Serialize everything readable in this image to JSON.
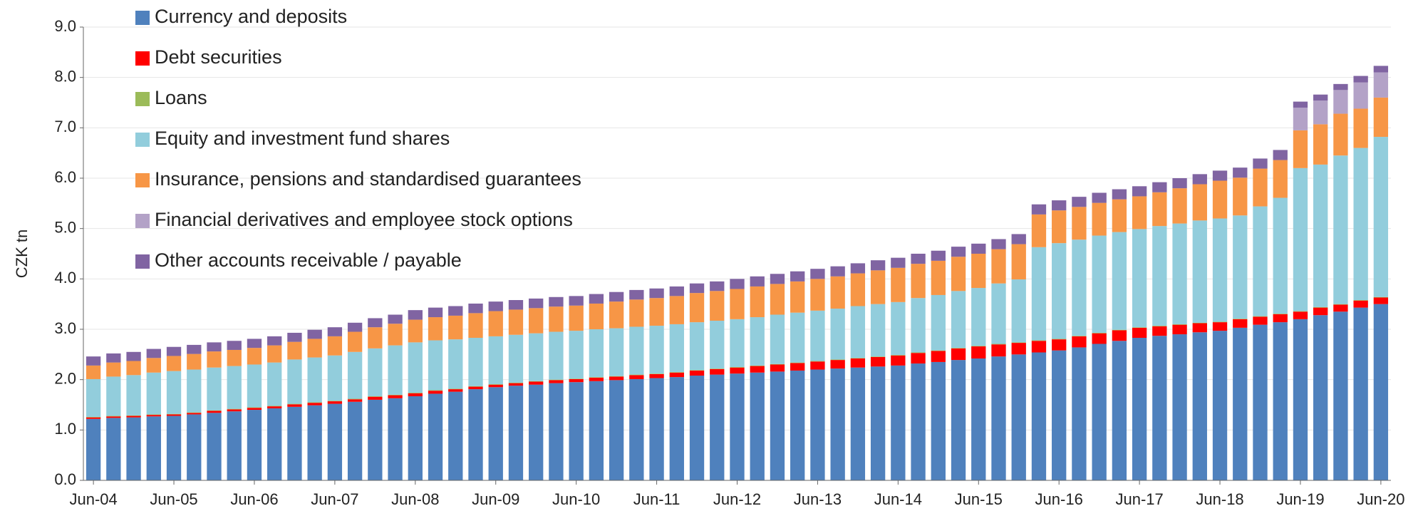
{
  "chart_data": {
    "type": "stacked_bar",
    "y_label": "CZK tn",
    "categories": [
      "Jun-04",
      null,
      null,
      null,
      "Jun-05",
      null,
      null,
      null,
      "Jun-06",
      null,
      null,
      null,
      "Jun-07",
      null,
      null,
      null,
      "Jun-08",
      null,
      null,
      null,
      "Jun-09",
      null,
      null,
      null,
      "Jun-10",
      null,
      null,
      null,
      "Jun-11",
      null,
      null,
      null,
      "Jun-12",
      null,
      null,
      null,
      "Jun-13",
      null,
      null,
      null,
      "Jun-14",
      null,
      null,
      null,
      "Jun-15",
      null,
      null,
      null,
      "Jun-16",
      null,
      null,
      null,
      "Jun-17",
      null,
      null,
      null,
      "Jun-18",
      null,
      null,
      null,
      "Jun-19",
      null,
      null,
      null,
      "Jun-20"
    ],
    "series": [
      {
        "name": "Currency and deposits",
        "color": "#4f81bd",
        "values": [
          1.22,
          1.24,
          1.25,
          1.27,
          1.28,
          1.31,
          1.34,
          1.37,
          1.4,
          1.43,
          1.46,
          1.49,
          1.52,
          1.56,
          1.6,
          1.63,
          1.67,
          1.72,
          1.76,
          1.81,
          1.85,
          1.88,
          1.9,
          1.93,
          1.95,
          1.97,
          1.99,
          2.01,
          2.03,
          2.05,
          2.08,
          2.1,
          2.12,
          2.14,
          2.16,
          2.18,
          2.2,
          2.22,
          2.24,
          2.26,
          2.28,
          2.32,
          2.35,
          2.39,
          2.42,
          2.46,
          2.5,
          2.54,
          2.58,
          2.64,
          2.71,
          2.77,
          2.83,
          2.87,
          2.9,
          2.94,
          2.97,
          3.03,
          3.09,
          3.14,
          3.2,
          3.28,
          3.35,
          3.43,
          3.5
        ]
      },
      {
        "name": "Debt securities",
        "color": "#ff0000",
        "values": [
          0.03,
          0.03,
          0.03,
          0.03,
          0.03,
          0.03,
          0.04,
          0.04,
          0.04,
          0.04,
          0.05,
          0.05,
          0.05,
          0.05,
          0.06,
          0.06,
          0.06,
          0.06,
          0.05,
          0.05,
          0.05,
          0.05,
          0.06,
          0.06,
          0.06,
          0.07,
          0.07,
          0.08,
          0.08,
          0.09,
          0.1,
          0.11,
          0.12,
          0.13,
          0.14,
          0.15,
          0.16,
          0.17,
          0.18,
          0.19,
          0.2,
          0.21,
          0.22,
          0.23,
          0.24,
          0.24,
          0.23,
          0.23,
          0.22,
          0.22,
          0.21,
          0.21,
          0.2,
          0.19,
          0.19,
          0.18,
          0.17,
          0.17,
          0.16,
          0.16,
          0.15,
          0.15,
          0.14,
          0.14,
          0.13
        ]
      },
      {
        "name": "Loans",
        "color": "#9bbb59",
        "values": [
          0.01,
          0.01,
          0.01,
          0.01,
          0.01,
          0.01,
          0.01,
          0.01,
          0.01,
          0.01,
          0.01,
          0.01,
          0.01,
          0.01,
          0.01,
          0.01,
          0.01,
          0.01,
          0.01,
          0.01,
          0.01,
          0.01,
          0.01,
          0.01,
          0.01,
          0.01,
          0.01,
          0.01,
          0.01,
          0.01,
          0.01,
          0.01,
          0.01,
          0.01,
          0.01,
          0.01,
          0.01,
          0.01,
          0.01,
          0.01,
          0.01,
          0.01,
          0.01,
          0.01,
          0.01,
          0.01,
          0.01,
          0.01,
          0.01,
          0.01,
          0.01,
          0.01,
          0.01,
          0.01,
          0.01,
          0.01,
          0.01,
          0.01,
          0.01,
          0.01,
          0.01,
          0.01,
          0.01,
          0.01,
          0.01
        ]
      },
      {
        "name": "Equity and investment fund shares",
        "color": "#92cddc",
        "values": [
          0.75,
          0.78,
          0.8,
          0.83,
          0.85,
          0.85,
          0.85,
          0.85,
          0.85,
          0.86,
          0.88,
          0.89,
          0.9,
          0.93,
          0.95,
          0.98,
          1.0,
          0.99,
          0.98,
          0.96,
          0.95,
          0.95,
          0.95,
          0.95,
          0.95,
          0.95,
          0.95,
          0.95,
          0.95,
          0.95,
          0.95,
          0.95,
          0.95,
          0.96,
          0.98,
          0.99,
          1.0,
          1.01,
          1.03,
          1.04,
          1.05,
          1.08,
          1.1,
          1.13,
          1.15,
          1.2,
          1.25,
          1.85,
          1.9,
          1.91,
          1.93,
          1.94,
          1.95,
          1.98,
          2.0,
          2.03,
          2.05,
          2.05,
          2.18,
          2.3,
          2.84,
          2.83,
          2.95,
          3.02,
          3.18
        ]
      },
      {
        "name": "Insurance, pensions and standardised guarantees",
        "color": "#f79646",
        "values": [
          0.27,
          0.28,
          0.28,
          0.29,
          0.3,
          0.31,
          0.32,
          0.32,
          0.33,
          0.34,
          0.35,
          0.37,
          0.38,
          0.4,
          0.42,
          0.43,
          0.45,
          0.46,
          0.47,
          0.49,
          0.5,
          0.5,
          0.5,
          0.5,
          0.5,
          0.51,
          0.53,
          0.54,
          0.55,
          0.56,
          0.58,
          0.59,
          0.6,
          0.61,
          0.61,
          0.62,
          0.63,
          0.64,
          0.65,
          0.67,
          0.68,
          0.68,
          0.68,
          0.68,
          0.68,
          0.68,
          0.7,
          0.65,
          0.65,
          0.65,
          0.65,
          0.65,
          0.65,
          0.67,
          0.7,
          0.72,
          0.75,
          0.75,
          0.75,
          0.75,
          0.75,
          0.8,
          0.83,
          0.78,
          0.78
        ]
      },
      {
        "name": "Financial derivatives and employee stock options",
        "color": "#b3a2c7",
        "values": [
          0,
          0,
          0,
          0,
          0,
          0,
          0,
          0,
          0,
          0,
          0,
          0,
          0,
          0,
          0,
          0,
          0,
          0,
          0,
          0,
          0,
          0,
          0,
          0,
          0,
          0,
          0,
          0,
          0,
          0,
          0,
          0,
          0,
          0,
          0,
          0,
          0,
          0,
          0,
          0,
          0,
          0,
          0,
          0,
          0,
          0,
          0,
          0,
          0,
          0,
          0,
          0,
          0,
          0,
          0,
          0,
          0,
          0,
          0,
          0,
          0.45,
          0.47,
          0.47,
          0.52,
          0.5
        ]
      },
      {
        "name": "Other accounts receivable / payable",
        "color": "#8064a2",
        "values": [
          0.18,
          0.18,
          0.18,
          0.18,
          0.18,
          0.18,
          0.18,
          0.18,
          0.18,
          0.18,
          0.18,
          0.18,
          0.18,
          0.18,
          0.18,
          0.18,
          0.19,
          0.19,
          0.19,
          0.19,
          0.19,
          0.19,
          0.19,
          0.19,
          0.19,
          0.19,
          0.19,
          0.19,
          0.19,
          0.19,
          0.19,
          0.19,
          0.2,
          0.2,
          0.2,
          0.2,
          0.2,
          0.2,
          0.2,
          0.2,
          0.2,
          0.2,
          0.2,
          0.2,
          0.2,
          0.2,
          0.2,
          0.2,
          0.2,
          0.2,
          0.2,
          0.2,
          0.2,
          0.2,
          0.2,
          0.2,
          0.2,
          0.2,
          0.2,
          0.2,
          0.12,
          0.12,
          0.12,
          0.13,
          0.13
        ]
      }
    ],
    "ylim": [
      0,
      9
    ],
    "yticks": [
      {
        "value": 0,
        "label": "0.0"
      },
      {
        "value": 1,
        "label": "1.0"
      },
      {
        "value": 2,
        "label": "2.0"
      },
      {
        "value": 3,
        "label": "3.0"
      },
      {
        "value": 4,
        "label": "4.0"
      },
      {
        "value": 5,
        "label": "5.0"
      },
      {
        "value": 6,
        "label": "6.0"
      },
      {
        "value": 7,
        "label": "7.0"
      },
      {
        "value": 8,
        "label": "8.0"
      },
      {
        "value": 9,
        "label": "9.0"
      }
    ],
    "grid": true,
    "legend": "top-left"
  }
}
